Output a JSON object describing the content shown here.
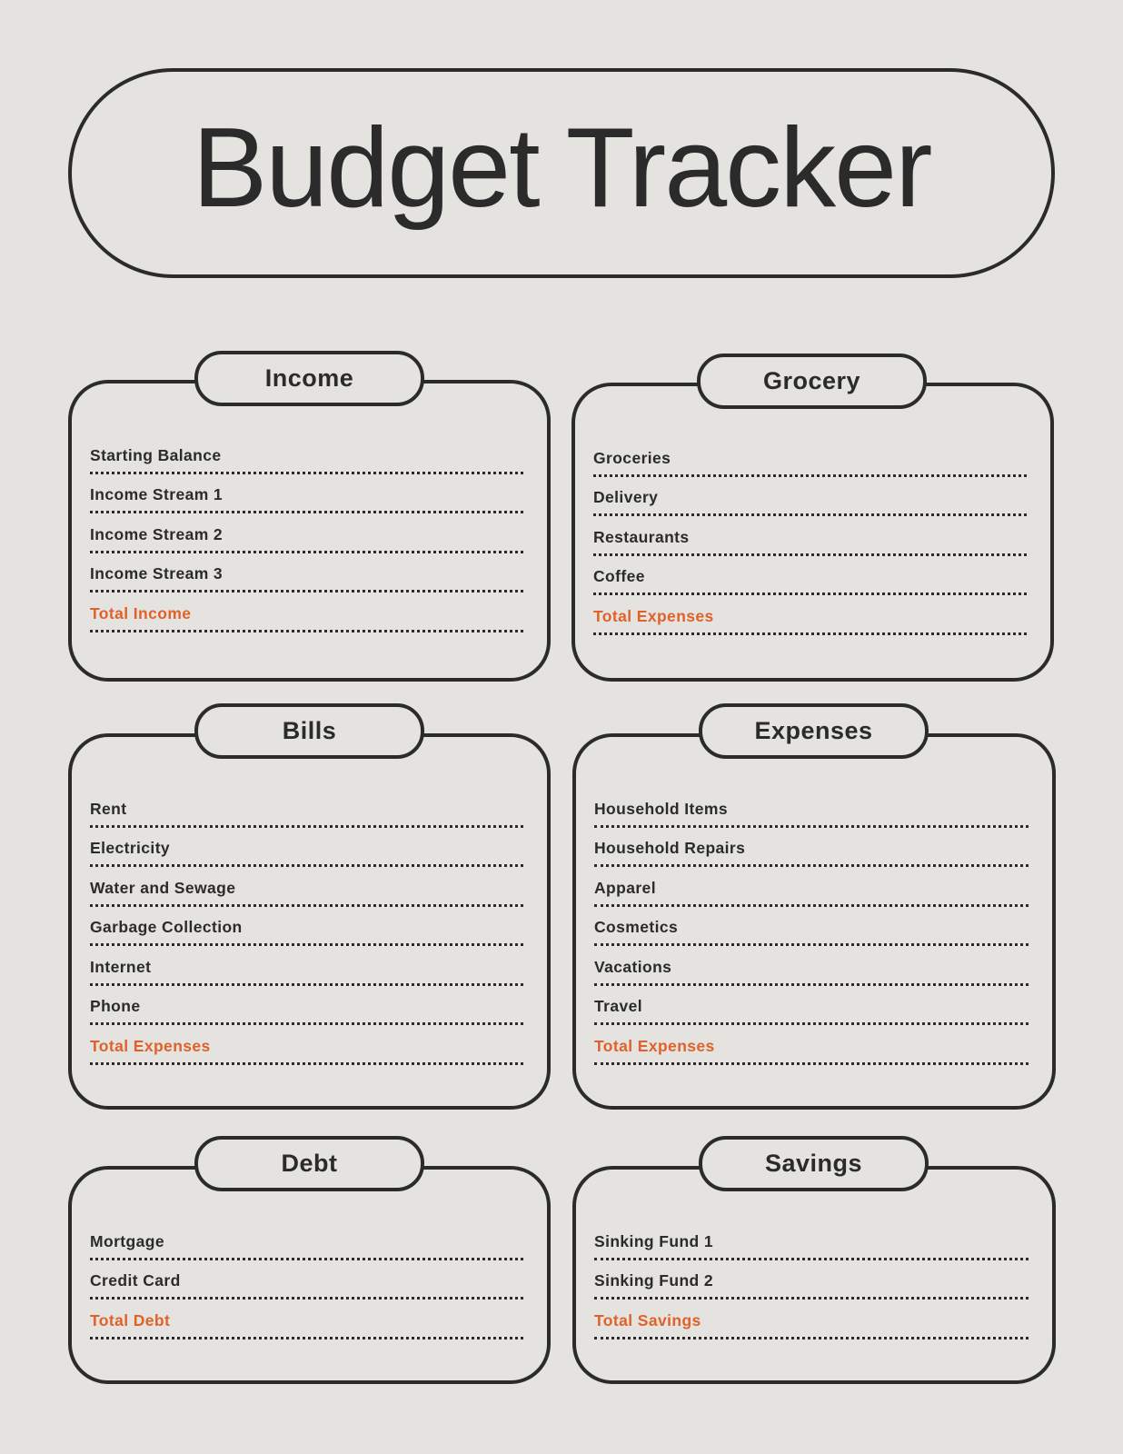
{
  "title": "Budget Tracker",
  "colors": {
    "background": "#e4e3df",
    "ink": "#2b2b2b",
    "accent": "#e0622a"
  },
  "sections": {
    "income": {
      "heading": "Income",
      "items": [
        "Starting Balance",
        "Income Stream 1",
        "Income Stream 2",
        "Income Stream 3"
      ],
      "total": "Total Income"
    },
    "grocery": {
      "heading": "Grocery",
      "items": [
        "Groceries",
        "Delivery",
        "Restaurants",
        "Coffee"
      ],
      "total": "Total Expenses"
    },
    "bills": {
      "heading": "Bills",
      "items": [
        "Rent",
        "Electricity",
        "Water and Sewage",
        "Garbage Collection",
        "Internet",
        "Phone"
      ],
      "total": "Total Expenses"
    },
    "expenses": {
      "heading": "Expenses",
      "items": [
        "Household Items",
        "Household Repairs",
        "Apparel",
        "Cosmetics",
        "Vacations",
        "Travel"
      ],
      "total": "Total Expenses"
    },
    "debt": {
      "heading": "Debt",
      "items": [
        "Mortgage",
        "Credit Card"
      ],
      "total": "Total Debt"
    },
    "savings": {
      "heading": "Savings",
      "items": [
        "Sinking Fund 1",
        "Sinking Fund 2"
      ],
      "total": "Total Savings"
    }
  }
}
